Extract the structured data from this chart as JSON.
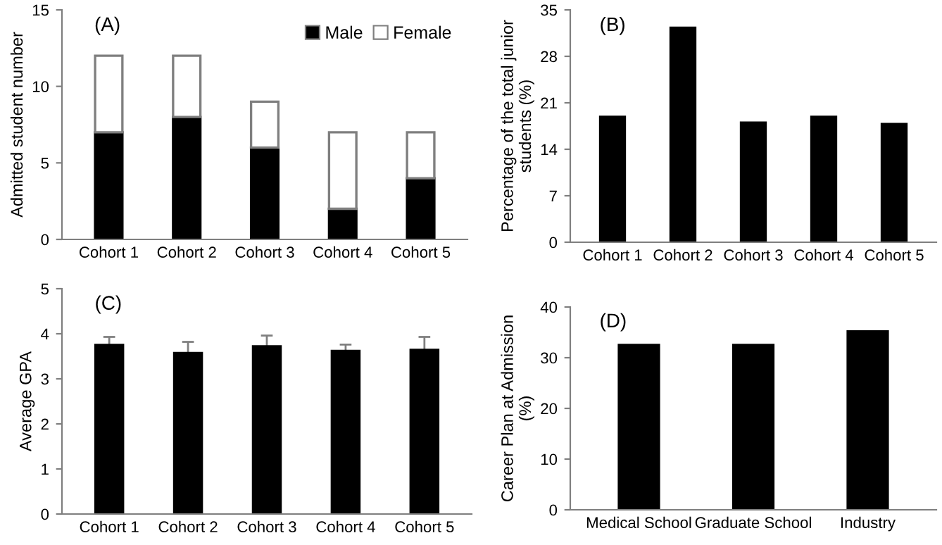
{
  "chart_data": [
    {
      "type": "bar",
      "title": "(A)",
      "ylabel": "Admitted student number",
      "categories": [
        "Cohort 1",
        "Cohort 2",
        "Cohort 3",
        "Cohort 4",
        "Cohort 5"
      ],
      "stacked": true,
      "legend": "top right",
      "series": [
        {
          "name": "Male",
          "color": "#000000",
          "values": [
            7,
            8,
            6,
            2,
            4
          ]
        },
        {
          "name": "Female",
          "color": "#ffffff",
          "values": [
            5,
            4,
            3,
            5,
            3
          ]
        }
      ],
      "ylim": [
        0,
        15
      ],
      "yticks": [
        0,
        5,
        10,
        15
      ]
    },
    {
      "type": "bar",
      "title": "(B)",
      "ylabel": "Percentage of the total junior\nstudents (%)",
      "categories": [
        "Cohort 1",
        "Cohort 2",
        "Cohort 3",
        "Cohort 4",
        "Cohort 5"
      ],
      "series": [
        {
          "color": "#000000",
          "values": [
            18.9,
            32.3,
            18.0,
            18.9,
            17.8
          ]
        }
      ],
      "ylim": [
        0,
        35
      ],
      "yticks": [
        0,
        7,
        14,
        21,
        28,
        35
      ]
    },
    {
      "type": "bar",
      "title": "(C)",
      "ylabel": "Average GPA",
      "categories": [
        "Cohort 1",
        "Cohort 2",
        "Cohort 3",
        "Cohort 4",
        "Cohort 5"
      ],
      "series": [
        {
          "color": "#000000",
          "values": [
            3.75,
            3.57,
            3.72,
            3.62,
            3.64
          ],
          "errors": [
            0.18,
            0.25,
            0.24,
            0.14,
            0.29
          ]
        }
      ],
      "ylim": [
        0,
        5
      ],
      "yticks": [
        0,
        1,
        2,
        3,
        4,
        5
      ]
    },
    {
      "type": "bar",
      "title": "(D)",
      "ylabel": "Career Plan at Admission\n(%)",
      "categories": [
        "Medical School",
        "Graduate School",
        "Industry"
      ],
      "series": [
        {
          "color": "#000000",
          "values": [
            32.5,
            32.5,
            35.2
          ]
        }
      ],
      "ylim": [
        0,
        40
      ],
      "yticks": [
        0,
        10,
        20,
        30,
        40
      ]
    }
  ]
}
